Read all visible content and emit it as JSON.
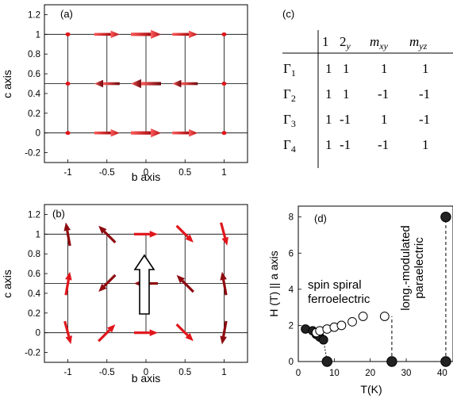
{
  "colors": {
    "arrow_bright": "#e0161c",
    "arrow_dark": "#8e0b10",
    "frame": "#000000",
    "dot": "#222222"
  },
  "panel_a": {
    "label": "(a)",
    "xlabel": "b axis",
    "ylabel": "c axis",
    "xticks": [
      "-1",
      "-0.5",
      "0",
      "0.5",
      "1"
    ],
    "yticks": [
      "1.2",
      "1",
      "0.8",
      "0.6",
      "0.4",
      "0.2",
      "0",
      "-0.2"
    ],
    "grid_b": [
      -1,
      -0.5,
      0,
      0.5,
      1
    ],
    "grid_c": [
      0,
      0.5,
      1
    ],
    "arrows": [
      {
        "b": -1,
        "c": 1,
        "dir": 1,
        "size": 0.15
      },
      {
        "b": -0.5,
        "c": 1,
        "dir": 1,
        "size": 0.7
      },
      {
        "b": 0,
        "c": 1,
        "dir": 1,
        "size": 1.0
      },
      {
        "b": 0.5,
        "c": 1,
        "dir": 1,
        "size": 0.7
      },
      {
        "b": 1,
        "c": 1,
        "dir": 1,
        "size": 0.15
      },
      {
        "b": -1,
        "c": 0.5,
        "dir": -1,
        "size": 0.15
      },
      {
        "b": -0.5,
        "c": 0.5,
        "dir": -1,
        "size": 0.7
      },
      {
        "b": 0,
        "c": 0.5,
        "dir": -1,
        "size": 1.0
      },
      {
        "b": 0.5,
        "c": 0.5,
        "dir": -1,
        "size": 0.7
      },
      {
        "b": 1,
        "c": 0.5,
        "dir": -1,
        "size": 0.15
      },
      {
        "b": -1,
        "c": 0,
        "dir": 1,
        "size": 0.15
      },
      {
        "b": -0.5,
        "c": 0,
        "dir": 1,
        "size": 0.7
      },
      {
        "b": 0,
        "c": 0,
        "dir": 1,
        "size": 1.0
      },
      {
        "b": 0.5,
        "c": 0,
        "dir": 1,
        "size": 0.7
      },
      {
        "b": 1,
        "c": 0,
        "dir": 1,
        "size": 0.15
      }
    ]
  },
  "panel_b": {
    "label": "(b)",
    "xlabel": "b axis",
    "ylabel": "c axis",
    "xticks": [
      "-1",
      "-0.5",
      "0",
      "0.5",
      "1"
    ],
    "yticks": [
      "1.2",
      "1",
      "0.8",
      "0.6",
      "0.4",
      "0.2",
      "0",
      "-0.2"
    ],
    "grid_b": [
      -1,
      -0.5,
      0,
      0.5,
      1
    ],
    "grid_c": [
      0,
      0.5,
      1
    ],
    "spin_angles_deg": {
      "row_c1": [
        100,
        135,
        0,
        315,
        285
      ],
      "row_c0.5": [
        80,
        225,
        180,
        135,
        100
      ],
      "row_c0": [
        285,
        45,
        0,
        315,
        260
      ]
    },
    "polarization_arrow": "up"
  },
  "panel_c": {
    "label": "(c)",
    "header": [
      "",
      "1",
      "2_y",
      "m_xy",
      "m_yz"
    ],
    "rows": [
      {
        "irrep": "Γ1",
        "values": [
          "1",
          "1",
          "1",
          "1"
        ]
      },
      {
        "irrep": "Γ2",
        "values": [
          "1",
          "1",
          "-1",
          "-1"
        ]
      },
      {
        "irrep": "Γ3",
        "values": [
          "1",
          "-1",
          "1",
          "-1"
        ]
      },
      {
        "irrep": "Γ4",
        "values": [
          "1",
          "-1",
          "-1",
          "1"
        ]
      }
    ]
  },
  "chart_data": {
    "type": "scatter",
    "label": "(d)",
    "xlabel": "T(K)",
    "ylabel": "H (T) || a axis",
    "xlim": [
      0,
      43
    ],
    "ylim": [
      0,
      8.6
    ],
    "xticks": [
      "0",
      "10",
      "20",
      "30",
      "40"
    ],
    "yticks": [
      "0",
      "2",
      "4",
      "6",
      "8"
    ],
    "series": [
      {
        "filled": true,
        "x": [
          2,
          4,
          5,
          6,
          7
        ],
        "y": [
          1.8,
          1.7,
          1.5,
          1.35,
          1.2
        ]
      },
      {
        "filled": false,
        "x": [
          5,
          6,
          8,
          10,
          12,
          15,
          18,
          24
        ],
        "y": [
          1.6,
          1.7,
          1.8,
          1.9,
          2.0,
          2.2,
          2.5,
          2.5
        ]
      },
      {
        "filled": true,
        "x": [
          8,
          26,
          41,
          41
        ],
        "y": [
          0,
          0,
          0,
          8
        ]
      }
    ],
    "annotations": [
      "spin spiral",
      "ferroelectric",
      "long.-modulated",
      "paraelectric"
    ]
  }
}
